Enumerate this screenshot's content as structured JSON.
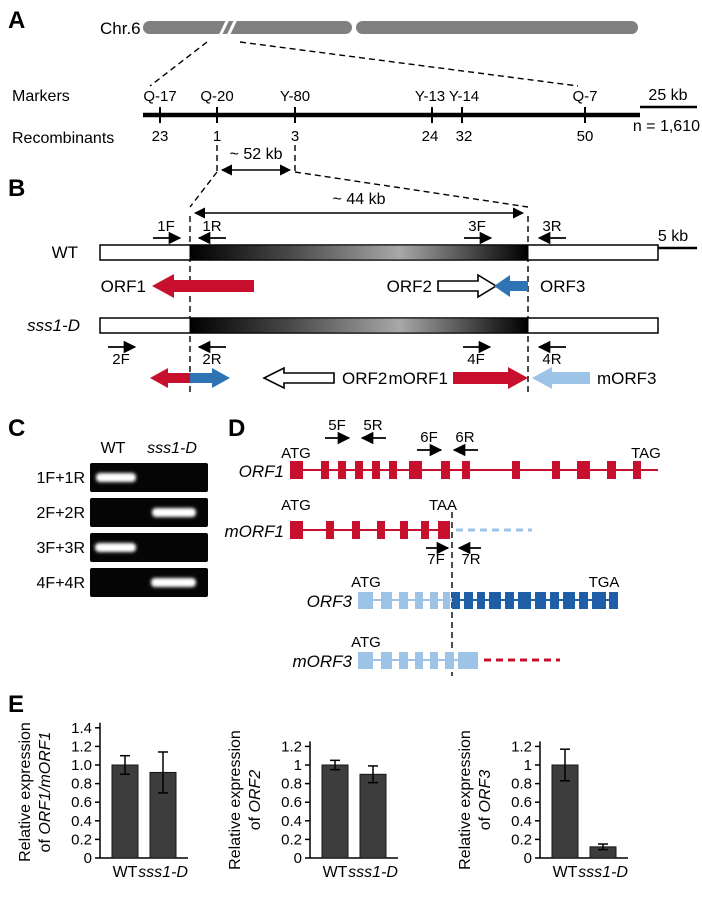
{
  "colors": {
    "red": "#c8102e",
    "dark_blue": "#1f5fa8",
    "medium_blue": "#2e74b5",
    "light_blue": "#9dc3e6",
    "blue_text": "#5b9bd5",
    "bar_gray": "#3d3d3d",
    "chromosome_gray": "#808080"
  },
  "panelA": {
    "label": "A",
    "chr_label": "Chr.6",
    "markers_title": "Markers",
    "recombinants_title": "Recombinants",
    "scale_label": "25 kb",
    "n_label": "n = 1,610",
    "region_label": "~ 52 kb",
    "markers": [
      {
        "name": "Q-17",
        "recombinants": "23"
      },
      {
        "name": "Q-20",
        "recombinants": "1"
      },
      {
        "name": "Y-80",
        "recombinants": "3"
      },
      {
        "name": "Y-13",
        "recombinants": "24"
      },
      {
        "name": "Y-14",
        "recombinants": "32"
      },
      {
        "name": "Q-7",
        "recombinants": "50"
      }
    ]
  },
  "panelB": {
    "label": "B",
    "region_label": "~ 44 kb",
    "scale_label": "5 kb",
    "wt": {
      "name": "WT",
      "primers": [
        "1F",
        "1R",
        "3F",
        "3R"
      ],
      "orf1": "ORF1",
      "orf2": "ORF2",
      "orf3": "ORF3"
    },
    "mutant": {
      "name": "sss1-D",
      "primers": [
        "2F",
        "2R",
        "4F",
        "4R"
      ],
      "orf2": "ORF2",
      "morf1": "mORF1",
      "morf3": "mORF3"
    }
  },
  "panelC": {
    "label": "C",
    "col_wt": "WT",
    "col_mut": "sss1-D",
    "rows": [
      {
        "label": "1F+1R",
        "band_lane": "WT"
      },
      {
        "label": "2F+2R",
        "band_lane": "sss1-D"
      },
      {
        "label": "3F+3R",
        "band_lane": "WT"
      },
      {
        "label": "4F+4R",
        "band_lane": "sss1-D"
      }
    ]
  },
  "panelD": {
    "label": "D",
    "primers": [
      "5F",
      "5R",
      "6F",
      "6R",
      "7F",
      "7R"
    ],
    "orf1": {
      "name": "ORF1",
      "start": "ATG",
      "stop": "TAG"
    },
    "morf1": {
      "name": "mORF1",
      "start": "ATG",
      "stop": "TAA"
    },
    "orf3": {
      "name": "ORF3",
      "start": "ATG",
      "stop": "TGA"
    },
    "morf3": {
      "name": "mORF3",
      "start": "ATG"
    }
  },
  "panelE": {
    "label": "E"
  },
  "chart_data": [
    {
      "type": "bar",
      "categories": [
        "WT",
        "sss1-D"
      ],
      "values": [
        1.0,
        0.92
      ],
      "errors": [
        0.1,
        0.22
      ],
      "ylabel_line1": "Relative expression",
      "ylabel_prefix": "of ",
      "ylabel_gene": "ORF1/mORF1",
      "ytick_labels": [
        "0",
        "0.2",
        "0.4",
        "0.6",
        "0.8",
        "1.0",
        "1.2",
        "1.4"
      ],
      "ylim": [
        0,
        1.4
      ],
      "legend": "none",
      "grid": false
    },
    {
      "type": "bar",
      "categories": [
        "WT",
        "sss1-D"
      ],
      "values": [
        1.0,
        0.9
      ],
      "errors": [
        0.05,
        0.09
      ],
      "ylabel_line1": "Relative expression",
      "ylabel_prefix": "of ",
      "ylabel_gene": "ORF2",
      "ytick_labels": [
        "0",
        "0.2",
        "0.4",
        "0.6",
        "0.8",
        "1",
        "1.2"
      ],
      "ylim": [
        0,
        1.2
      ],
      "legend": "none",
      "grid": false
    },
    {
      "type": "bar",
      "categories": [
        "WT",
        "sss1-D"
      ],
      "values": [
        1.0,
        0.12
      ],
      "errors": [
        0.17,
        0.03
      ],
      "ylabel_line1": "Relative expression",
      "ylabel_prefix": "of ",
      "ylabel_gene": "ORF3",
      "ytick_labels": [
        "0",
        "0.2",
        "0.4",
        "0.6",
        "0.8",
        "1",
        "1.2"
      ],
      "ylim": [
        0,
        1.2
      ],
      "legend": "none",
      "grid": false
    }
  ]
}
